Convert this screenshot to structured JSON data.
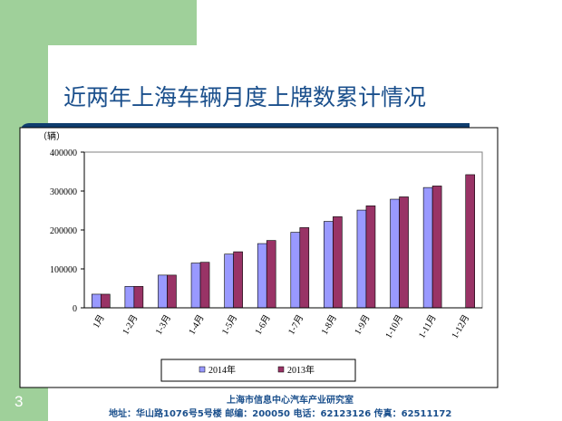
{
  "slide": {
    "title": "近两年上海车辆月度上牌数累计情况",
    "page_number": "3",
    "footer_org": "上海市信息中心汽车产业研究室",
    "footer_address": "地址：华山路1076号5号楼  邮编：200050  电话：62123126  传真：62511172"
  },
  "chart_data": {
    "type": "bar",
    "title": "",
    "xlabel": "",
    "ylabel": "（辆）",
    "ylim": [
      0,
      400000
    ],
    "yticks": [
      0,
      100000,
      200000,
      300000,
      400000
    ],
    "ytick_labels": [
      "0",
      "100000",
      "200000",
      "300000",
      "400000"
    ],
    "grid": false,
    "legend_position": "bottom",
    "categories": [
      "1月",
      "1-2月",
      "1-3月",
      "1-4月",
      "1-5月",
      "1-6月",
      "1-7月",
      "1-8月",
      "1-9月",
      "1-10月",
      "1-11月",
      "1-12月"
    ],
    "series": [
      {
        "name": "2014年",
        "color": "#9999ff",
        "values": [
          35000,
          55000,
          84000,
          115000,
          138000,
          165000,
          194000,
          222000,
          251000,
          279000,
          309000,
          null
        ]
      },
      {
        "name": "2013年",
        "color": "#993366",
        "values": [
          35000,
          55000,
          84000,
          117000,
          144000,
          173000,
          206000,
          234000,
          262000,
          285000,
          313000,
          342000
        ]
      }
    ]
  }
}
